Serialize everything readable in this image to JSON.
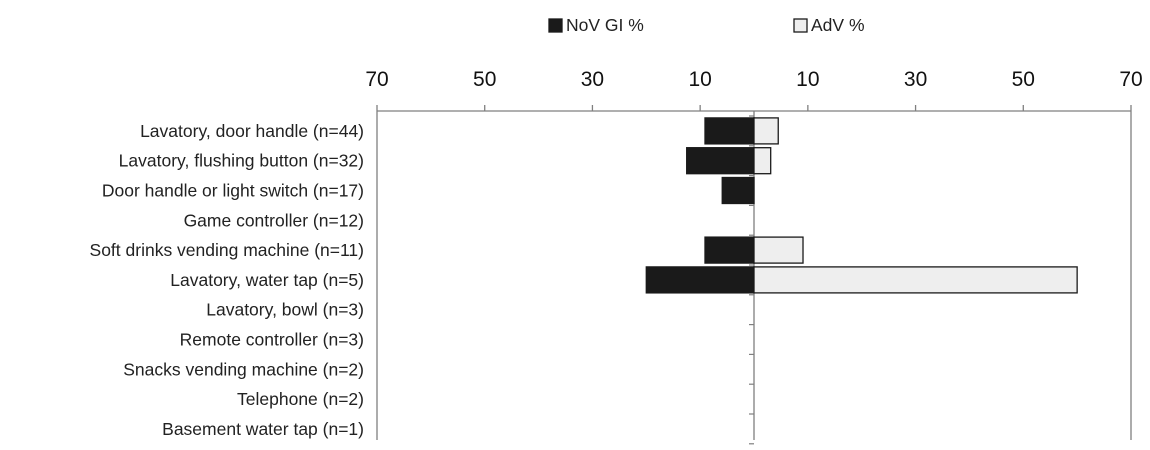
{
  "chart_data": {
    "type": "bar",
    "orientation": "horizontal-diverging",
    "title": "",
    "xlabel": "",
    "ylabel": "",
    "categories": [
      "Lavatory, door handle (n=44)",
      "Lavatory, flushing button (n=32)",
      "Door handle or light switch (n=17)",
      "Game controller (n=12)",
      "Soft drinks vending machine (n=11)",
      "Lavatory, water tap (n=5)",
      "Lavatory, bowl (n=3)",
      "Remote controller (n=3)",
      "Snacks vending machine (n=2)",
      "Telephone (n=2)",
      "Basement water tap (n=1)"
    ],
    "series": [
      {
        "name": "NoV GI %",
        "side": "left",
        "color": "#1a1a1a",
        "values": [
          9.1,
          12.5,
          5.9,
          0,
          9.1,
          20,
          0,
          0,
          0,
          0,
          0
        ]
      },
      {
        "name": "AdV %",
        "side": "right",
        "color": "#eeeeee",
        "values": [
          4.5,
          3.1,
          0,
          0,
          9.1,
          60,
          0,
          0,
          0,
          0,
          0
        ]
      }
    ],
    "xlim": [
      -70,
      70
    ],
    "xticks": [
      -70,
      -50,
      -30,
      -10,
      10,
      30,
      50,
      70
    ],
    "xtick_labels": [
      "70",
      "50",
      "30",
      "10",
      "10",
      "30",
      "50",
      "70"
    ],
    "axis_position": "top",
    "legend": "top-center",
    "grid": false
  }
}
